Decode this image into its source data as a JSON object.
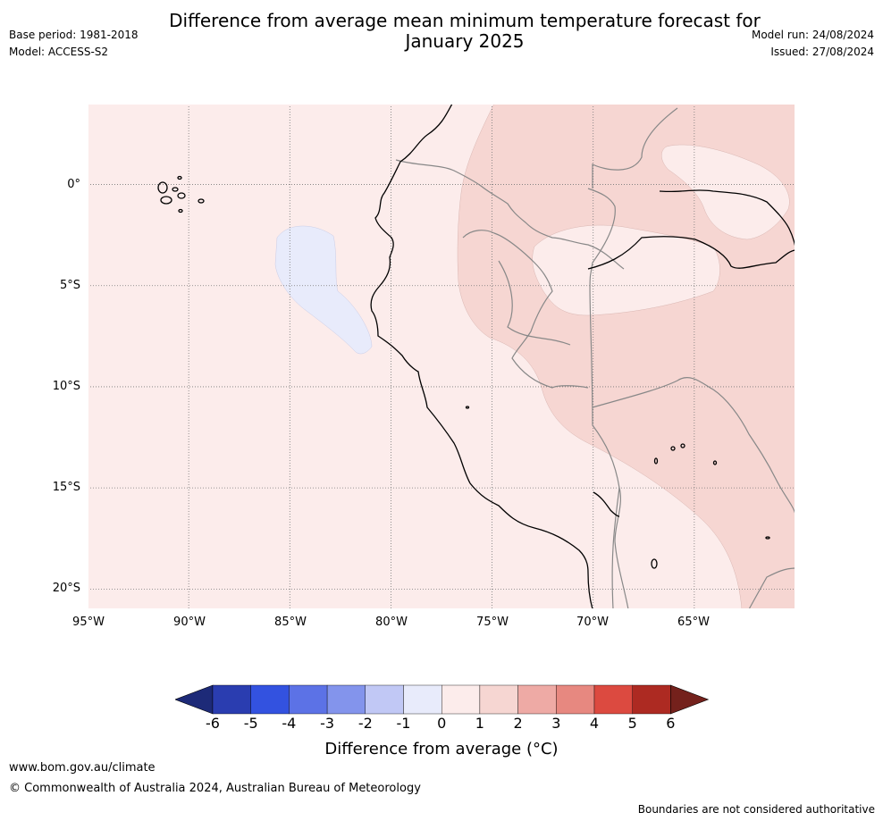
{
  "header": {
    "title_line1": "Difference from average mean minimum temperature forecast for",
    "title_line2": "January 2025",
    "base_period": "Base period: 1981-2018",
    "model": "Model: ACCESS-S2",
    "model_run": "Model run: 24/08/2024",
    "issued": "Issued: 27/08/2024"
  },
  "map": {
    "lat_labels": [
      "0°",
      "5°S",
      "10°S",
      "15°S",
      "20°S"
    ],
    "lon_labels": [
      "95°W",
      "90°W",
      "85°W",
      "80°W",
      "75°W",
      "70°W",
      "65°W"
    ],
    "lon_range": [
      -95,
      -60
    ],
    "lat_range": [
      -21,
      4
    ],
    "fill_colors": {
      "0_to_1": "#fceceb",
      "1_to_2": "#f6d6d2",
      "m1_to_0": "#e8ebfb"
    }
  },
  "colorbar": {
    "ticks": [
      "-6",
      "-5",
      "-4",
      "-3",
      "-2",
      "-1",
      "0",
      "1",
      "2",
      "3",
      "4",
      "5",
      "6"
    ],
    "colors": [
      "#1d2a78",
      "#2a3db0",
      "#3352e0",
      "#5c72e6",
      "#8394ec",
      "#c1c8f5",
      "#e8ebfb",
      "#fceceb",
      "#f6d6d2",
      "#eeaaa5",
      "#e78880",
      "#dc4a40",
      "#ad2a22",
      "#74211c"
    ],
    "label": "Difference from average (°C)"
  },
  "footer": {
    "url": "www.bom.gov.au/climate",
    "copyright": "© Commonwealth of Australia 2024, Australian Bureau of Meteorology",
    "disclaimer": "Boundaries are not considered authoritative"
  }
}
